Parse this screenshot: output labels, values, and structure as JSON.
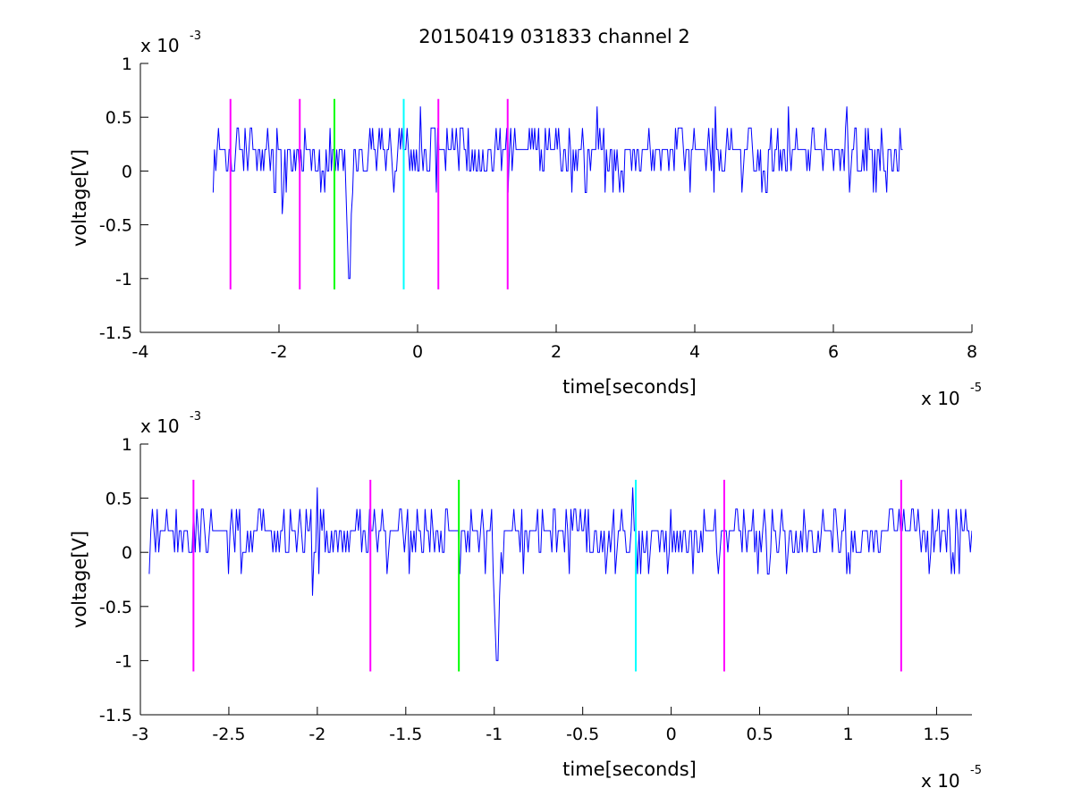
{
  "figure": {
    "title": "20150419 031833 channel 2",
    "background": "#ffffff"
  },
  "chart_data": [
    {
      "type": "line",
      "title": "20150419 031833 channel 2",
      "xlabel": "time[seconds]",
      "ylabel": "voltage[V]",
      "x_multiplier": {
        "base": "x 10",
        "exp": "-5"
      },
      "y_multiplier": {
        "base": "x 10",
        "exp": "-3"
      },
      "xlim": [
        -4,
        8
      ],
      "ylim": [
        -1.5,
        1
      ],
      "xticks": [
        -4,
        -2,
        0,
        2,
        4,
        6,
        8
      ],
      "xtick_labels": [
        "-4",
        "-2",
        "0",
        "2",
        "4",
        "6",
        "8"
      ],
      "yticks": [
        -1.5,
        -1,
        -0.5,
        0,
        0.5,
        1
      ],
      "ytick_labels": [
        "-1.5",
        "-1",
        "-0.5",
        "0",
        "0.5",
        "1"
      ],
      "grid": false,
      "series": [
        {
          "color": "#0000ff",
          "x_range": [
            -2.95,
            7.0
          ],
          "seed": 1234,
          "baseline": 0.2,
          "levels": [
            0,
            0.2,
            0.4
          ],
          "spikes": [
            {
              "x": -1.95,
              "y": -0.4
            },
            {
              "x": -1.0,
              "y": -1.0
            },
            {
              "x": 0.05,
              "y": 0.6
            },
            {
              "x": 2.6,
              "y": 0.6
            },
            {
              "x": 4.3,
              "y": 0.6
            },
            {
              "x": 5.35,
              "y": 0.6
            },
            {
              "x": 6.2,
              "y": 0.6
            }
          ],
          "dips_count": 26
        }
      ],
      "markers": [
        {
          "x": -2.7,
          "color": "#ff00ff",
          "y_range": [
            -1.1,
            0.67
          ]
        },
        {
          "x": -1.7,
          "color": "#ff00ff",
          "y_range": [
            -1.1,
            0.67
          ]
        },
        {
          "x": -1.2,
          "color": "#00ff00",
          "y_range": [
            -1.1,
            0.67
          ]
        },
        {
          "x": -0.2,
          "color": "#00ffff",
          "y_range": [
            -1.1,
            0.67
          ]
        },
        {
          "x": 0.3,
          "color": "#ff00ff",
          "y_range": [
            -1.1,
            0.67
          ]
        },
        {
          "x": 1.3,
          "color": "#ff00ff",
          "y_range": [
            -1.1,
            0.67
          ]
        }
      ]
    },
    {
      "type": "line",
      "title": "",
      "xlabel": "time[seconds]",
      "ylabel": "voltage[V]",
      "x_multiplier": {
        "base": "x 10",
        "exp": "-5"
      },
      "y_multiplier": {
        "base": "x 10",
        "exp": "-3"
      },
      "xlim": [
        -3,
        1.7
      ],
      "ylim": [
        -1.5,
        1
      ],
      "xticks": [
        -3,
        -2.5,
        -2,
        -1.5,
        -1,
        -0.5,
        0,
        0.5,
        1,
        1.5
      ],
      "xtick_labels": [
        "-3",
        "-2.5",
        "-2",
        "-1.5",
        "-1",
        "-0.5",
        "0",
        "0.5",
        "1",
        "1.5"
      ],
      "yticks": [
        -1.5,
        -1,
        -0.5,
        0,
        0.5,
        1
      ],
      "ytick_labels": [
        "-1.5",
        "-1",
        "-0.5",
        "0",
        "0.5",
        "1"
      ],
      "grid": false,
      "series": [
        {
          "color": "#0000ff",
          "x_range": [
            -2.95,
            1.7
          ],
          "seed": 98,
          "baseline": 0.2,
          "levels": [
            0,
            0.2,
            0.4
          ],
          "spikes": [
            {
              "x": -2.03,
              "y": -0.4
            },
            {
              "x": -2.0,
              "y": 0.6
            },
            {
              "x": -0.99,
              "y": -1.0
            },
            {
              "x": -0.22,
              "y": 0.6
            },
            {
              "x": -0.24,
              "y": 0.0
            }
          ],
          "dips_count": 30
        }
      ],
      "markers": [
        {
          "x": -2.7,
          "color": "#ff00ff",
          "y_range": [
            -1.1,
            0.67
          ]
        },
        {
          "x": -1.7,
          "color": "#ff00ff",
          "y_range": [
            -1.1,
            0.67
          ]
        },
        {
          "x": -1.2,
          "color": "#00ff00",
          "y_range": [
            -1.1,
            0.67
          ]
        },
        {
          "x": -0.2,
          "color": "#00ffff",
          "y_range": [
            -1.1,
            0.67
          ]
        },
        {
          "x": 0.3,
          "color": "#ff00ff",
          "y_range": [
            -1.1,
            0.67
          ]
        },
        {
          "x": 1.3,
          "color": "#ff00ff",
          "y_range": [
            -1.1,
            0.67
          ]
        }
      ]
    }
  ]
}
